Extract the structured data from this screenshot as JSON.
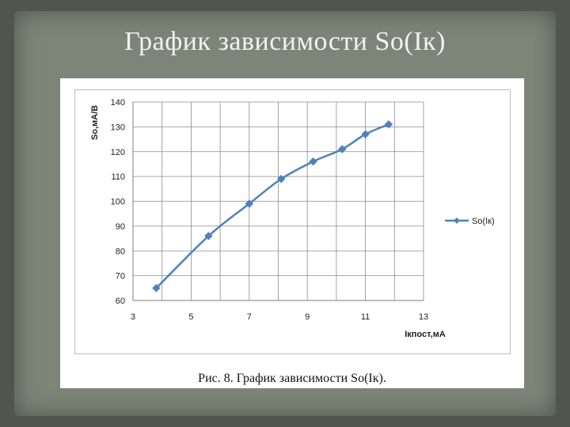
{
  "slide": {
    "title": "График зависимости So(Iк)",
    "caption": "Рис. 8. График зависимости So(Iк)."
  },
  "chart_data": {
    "type": "line",
    "title": "",
    "xlabel": "Iкпост,мА",
    "ylabel": "So,мА/В",
    "xlim": [
      3,
      13
    ],
    "ylim": [
      60,
      140
    ],
    "x_ticks": [
      3,
      5,
      7,
      9,
      11,
      13
    ],
    "y_ticks": [
      60,
      70,
      80,
      90,
      100,
      110,
      120,
      130,
      140
    ],
    "grid": true,
    "legend_position": "right",
    "series": [
      {
        "name": "So(Iк)",
        "color": "#4f81bd",
        "marker": "diamond",
        "x": [
          3.8,
          5.6,
          7.0,
          8.1,
          9.2,
          10.2,
          11.0,
          11.8
        ],
        "y": [
          65,
          86,
          99,
          109,
          116,
          121,
          127,
          131
        ]
      }
    ]
  }
}
